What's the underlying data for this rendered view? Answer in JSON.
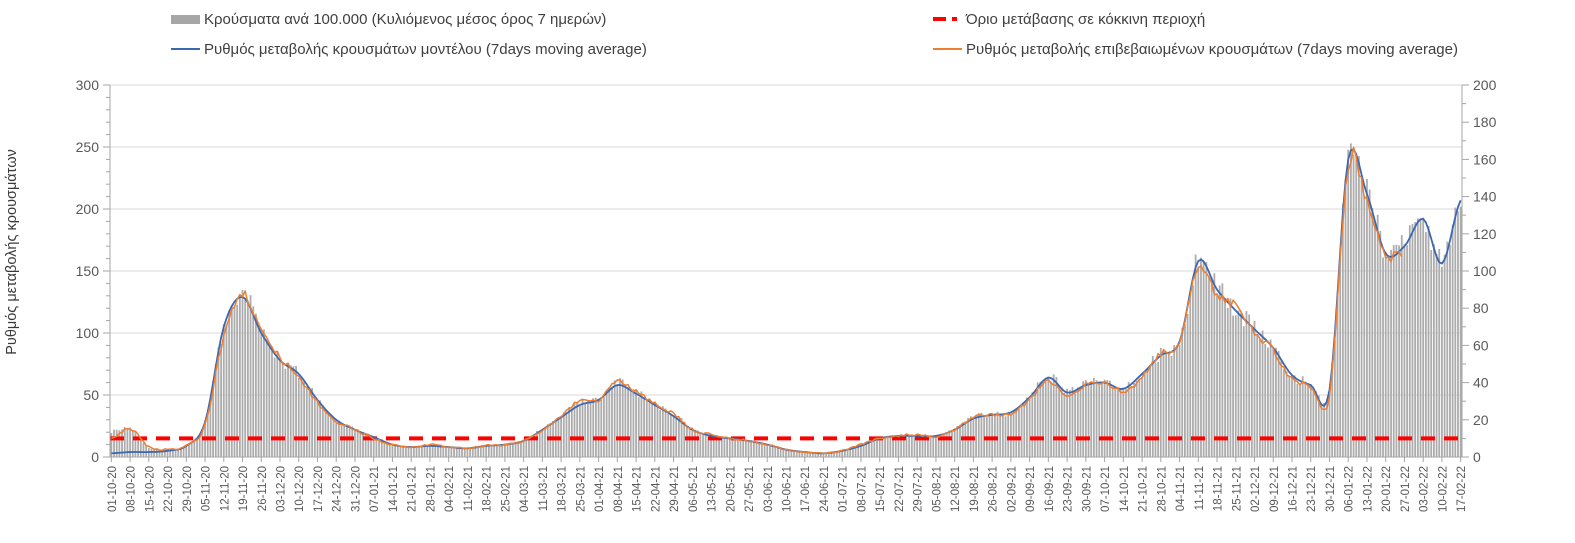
{
  "legend": {
    "items": [
      {
        "label": "Κρούσματα ανά 100.000 (Κυλιόμενος μέσος όρος 7 ημερών)",
        "marker": "bar",
        "color": "#A6A6A6"
      },
      {
        "label": "Όριο μετάβασης σε κόκκινη περιοχή",
        "marker": "dashes",
        "color": "#FF0000"
      },
      {
        "label": "Ρυθμός μεταβολής κρουσμάτων μοντέλου (7days moving average)",
        "marker": "line",
        "color": "#3C67B1"
      },
      {
        "label": "Ρυθμός μεταβολής επιβεβαιωμένων κρουσμάτων (7days moving average)",
        "marker": "line",
        "color": "#ED7D31"
      }
    ]
  },
  "chart_data": {
    "type": "bar",
    "subtype": "combo-bar-and-lines",
    "y_axis_left": {
      "label": "Ρυθμός μεταβολής κρουσμάτων",
      "min": 0,
      "max": 300,
      "major_step": 50,
      "minor_step": 10,
      "ticks": [
        0,
        50,
        100,
        150,
        200,
        250,
        300
      ]
    },
    "y_axis_right": {
      "min": 0,
      "max": 200,
      "major_step": 20,
      "minor_step": 10,
      "ticks": [
        0,
        20,
        40,
        60,
        80,
        100,
        120,
        140,
        160,
        180,
        200
      ]
    },
    "grid": "horizontal-only",
    "legend_position": "top",
    "x_weekly_labels": [
      "01-10-20",
      "08-10-20",
      "15-10-20",
      "22-10-20",
      "29-10-20",
      "05-11-20",
      "12-11-20",
      "19-11-20",
      "26-11-20",
      "03-12-20",
      "10-12-20",
      "17-12-20",
      "24-12-20",
      "31-12-20",
      "07-01-21",
      "14-01-21",
      "21-01-21",
      "28-01-21",
      "04-02-21",
      "11-02-21",
      "18-02-21",
      "25-02-21",
      "04-03-21",
      "11-03-21",
      "18-03-21",
      "25-03-21",
      "01-04-21",
      "08-04-21",
      "15-04-21",
      "22-04-21",
      "29-04-21",
      "06-05-21",
      "13-05-21",
      "20-05-21",
      "27-05-21",
      "03-06-21",
      "10-06-21",
      "17-06-21",
      "24-06-21",
      "01-07-21",
      "08-07-21",
      "15-07-21",
      "22-07-21",
      "29-07-21",
      "05-08-21",
      "12-08-21",
      "19-08-21",
      "26-08-21",
      "02-09-21",
      "09-09-21",
      "16-09-21",
      "23-09-21",
      "30-09-21",
      "07-10-21",
      "14-10-21",
      "21-10-21",
      "28-10-21",
      "04-11-21",
      "11-11-21",
      "18-11-21",
      "25-11-21",
      "02-12-21",
      "09-12-21",
      "16-12-21",
      "23-12-21",
      "30-12-21",
      "06-01-22",
      "13-01-22",
      "20-01-22",
      "27-01-22",
      "03-02-22",
      "10-02-22",
      "17-02-22"
    ],
    "threshold_red_zone": {
      "axis": "right",
      "value": 10
    },
    "series": {
      "cases_per_100k_7day_ma": {
        "axis": "right",
        "sampling": "weekly",
        "weekly_values": [
          13.5,
          15.5,
          5,
          4,
          6,
          19,
          70,
          88,
          68,
          53,
          45,
          31,
          20,
          15,
          11,
          7,
          5,
          6,
          5.5,
          5,
          6,
          7,
          9,
          15,
          22,
          29,
          31,
          40,
          35,
          28,
          23,
          15,
          12,
          10,
          9,
          7,
          4,
          2.7,
          2,
          3.3,
          6.5,
          10,
          11.5,
          11.5,
          11.5,
          15,
          21.5,
          23,
          24,
          32,
          43,
          35,
          39,
          40,
          37,
          45,
          55,
          62,
          106,
          91,
          79,
          69,
          58,
          44,
          39,
          36,
          160,
          142,
          110,
          113,
          128,
          104,
          140
        ]
      },
      "model_rate_7day_ma": {
        "axis": "left",
        "sampling": "weekly",
        "weekly_values": [
          3,
          4,
          4,
          5,
          9,
          28,
          105,
          129,
          100,
          78,
          67,
          46,
          30,
          22,
          16,
          10,
          8,
          9,
          8,
          7,
          9,
          10,
          13,
          22,
          32,
          42,
          46,
          58,
          51,
          42,
          33,
          22,
          17,
          15,
          13,
          10,
          6,
          4,
          3,
          5,
          9,
          15,
          17,
          17,
          17,
          22,
          31,
          34,
          36,
          48,
          64,
          52,
          58,
          60,
          55,
          67,
          82,
          93,
          158,
          135,
          118,
          103,
          88,
          66,
          58,
          54,
          240,
          212,
          164,
          170,
          192,
          156,
          207
        ]
      },
      "confirmed_rate_7day_ma": {
        "axis": "left",
        "sampling": "weekly",
        "weekly_values": [
          15,
          23,
          8,
          6,
          9,
          26,
          98,
          131,
          103,
          80,
          65,
          44,
          29,
          22,
          15,
          10,
          8,
          10,
          8,
          7,
          9,
          10,
          13,
          21,
          33,
          45,
          45,
          61,
          53,
          43,
          35,
          22,
          18,
          15,
          13,
          10,
          6,
          4,
          3,
          5,
          10,
          15,
          17,
          18,
          16,
          22,
          32,
          34,
          35,
          46,
          62,
          50,
          58,
          60,
          53,
          64,
          83,
          91,
          155,
          130,
          122,
          101,
          86,
          63,
          57,
          49,
          236,
          208,
          161,
          164,
          null,
          null,
          null
        ]
      }
    },
    "colors": {
      "bar": "#ACACAC",
      "model": "#3C67B1",
      "confirmed": "#ED7D31",
      "threshold": "#FF0000",
      "grid": "#D9D9D9",
      "axis": "#A6A6A6",
      "tick_text": "#595959",
      "axis_title": "#3a3a3a"
    }
  }
}
